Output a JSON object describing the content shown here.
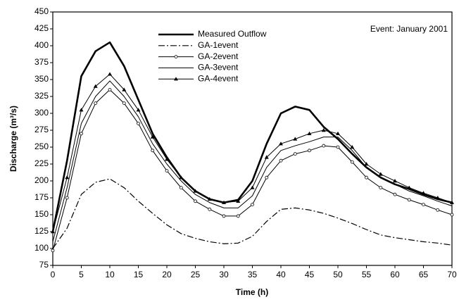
{
  "chart_data": {
    "type": "line",
    "annotation": "Event: January 2001",
    "xlabel": "Time (h)",
    "ylabel": "Discharge (m³/s)",
    "x": [
      0,
      2.5,
      5,
      7.5,
      10,
      12.5,
      15,
      17.5,
      20,
      22.5,
      25,
      27.5,
      30,
      32.5,
      35,
      37.5,
      40,
      42.5,
      45,
      47.5,
      50,
      52.5,
      55,
      57.5,
      60,
      62.5,
      65,
      67.5,
      70
    ],
    "series": [
      {
        "name": "Measured Outflow",
        "color": "#000000",
        "line_style": "thick",
        "marker": "none",
        "values": [
          125,
          230,
          355,
          392,
          405,
          370,
          320,
          270,
          235,
          205,
          185,
          173,
          168,
          172,
          200,
          255,
          300,
          310,
          305,
          280,
          262,
          240,
          220,
          205,
          195,
          188,
          180,
          173,
          168
        ]
      },
      {
        "name": "GA-1event",
        "color": "#000000",
        "line_style": "dashdot",
        "marker": "none",
        "values": [
          100,
          130,
          180,
          198,
          203,
          190,
          170,
          152,
          135,
          122,
          115,
          110,
          107,
          108,
          118,
          140,
          158,
          160,
          157,
          152,
          145,
          137,
          128,
          120,
          116,
          113,
          110,
          108,
          105
        ]
      },
      {
        "name": "GA-2event",
        "color": "#000000",
        "line_style": "solid",
        "marker": "circle",
        "values": [
          97,
          175,
          270,
          315,
          335,
          315,
          285,
          245,
          215,
          190,
          170,
          158,
          148,
          148,
          165,
          205,
          230,
          240,
          245,
          252,
          250,
          228,
          205,
          190,
          180,
          172,
          165,
          157,
          150
        ]
      },
      {
        "name": "GA-3event",
        "color": "#000000",
        "line_style": "solid",
        "marker": "none",
        "values": [
          110,
          190,
          285,
          325,
          348,
          325,
          295,
          255,
          225,
          200,
          180,
          168,
          160,
          160,
          178,
          220,
          245,
          252,
          258,
          265,
          265,
          245,
          220,
          205,
          195,
          185,
          178,
          170,
          163
        ]
      },
      {
        "name": "GA-4event",
        "color": "#000000",
        "line_style": "solid",
        "marker": "triangle",
        "values": [
          125,
          205,
          305,
          340,
          358,
          335,
          305,
          265,
          232,
          205,
          185,
          173,
          168,
          170,
          190,
          235,
          255,
          262,
          270,
          275,
          270,
          250,
          225,
          210,
          200,
          190,
          182,
          175,
          168
        ]
      }
    ],
    "xlim": [
      0,
      70
    ],
    "xticks": [
      0,
      5,
      10,
      15,
      20,
      25,
      30,
      35,
      40,
      45,
      50,
      55,
      60,
      65,
      70
    ],
    "ylim": [
      75,
      450
    ],
    "yticks": [
      75,
      100,
      125,
      150,
      175,
      200,
      225,
      250,
      275,
      300,
      325,
      350,
      375,
      400,
      425,
      450
    ],
    "legend": "upper-left"
  }
}
